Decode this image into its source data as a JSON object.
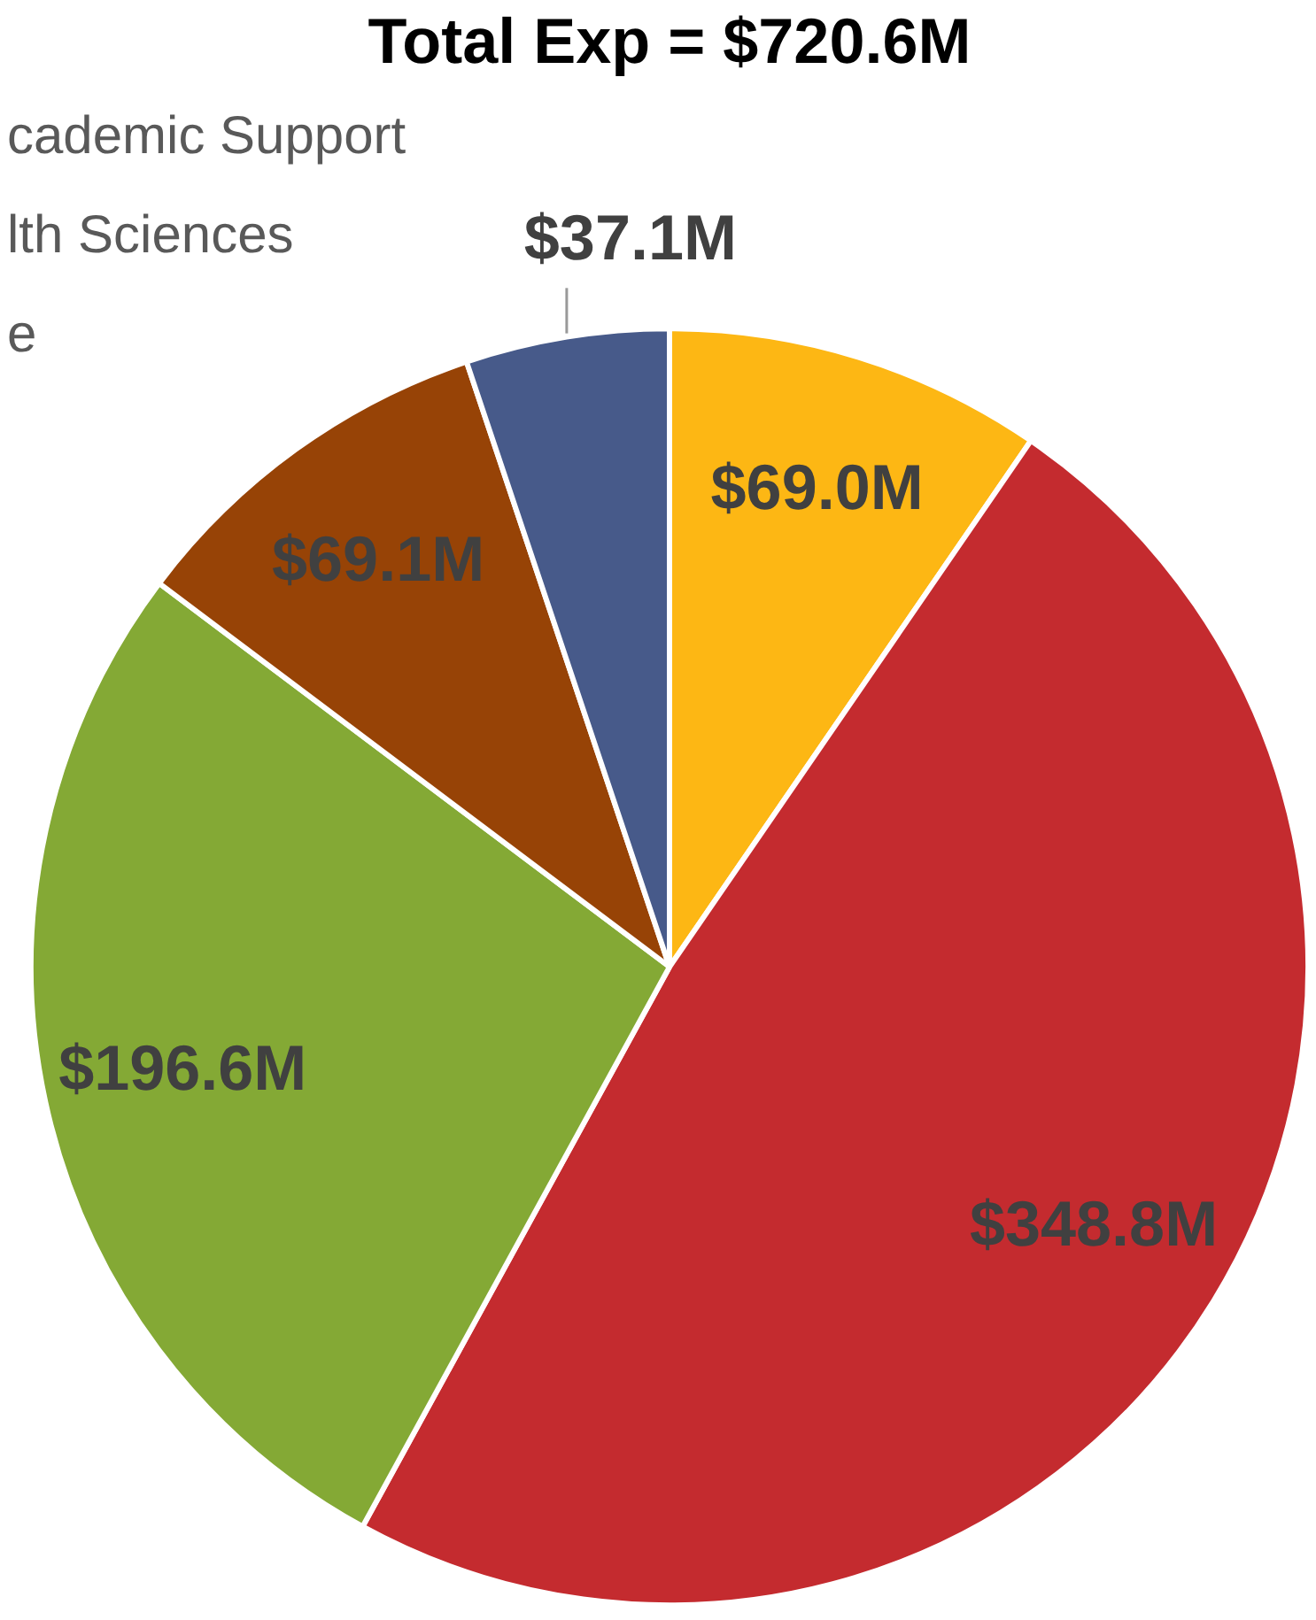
{
  "chart_data": {
    "type": "pie",
    "title": "Total Exp = $720.6M",
    "categories": [
      null,
      null,
      null,
      null,
      null
    ],
    "values": [
      69.0,
      348.8,
      196.6,
      69.1,
      37.1
    ],
    "colors": [
      "#fdb714",
      "#c42b2f",
      "#84a935",
      "#974306",
      "#475a8a"
    ],
    "value_labels": [
      "$69.0M",
      "$348.8M",
      "$196.6M",
      "$69.1M",
      "$37.1M"
    ],
    "annotations": [
      "cademic Support",
      "lth Sciences",
      "e"
    ],
    "legend": false
  }
}
